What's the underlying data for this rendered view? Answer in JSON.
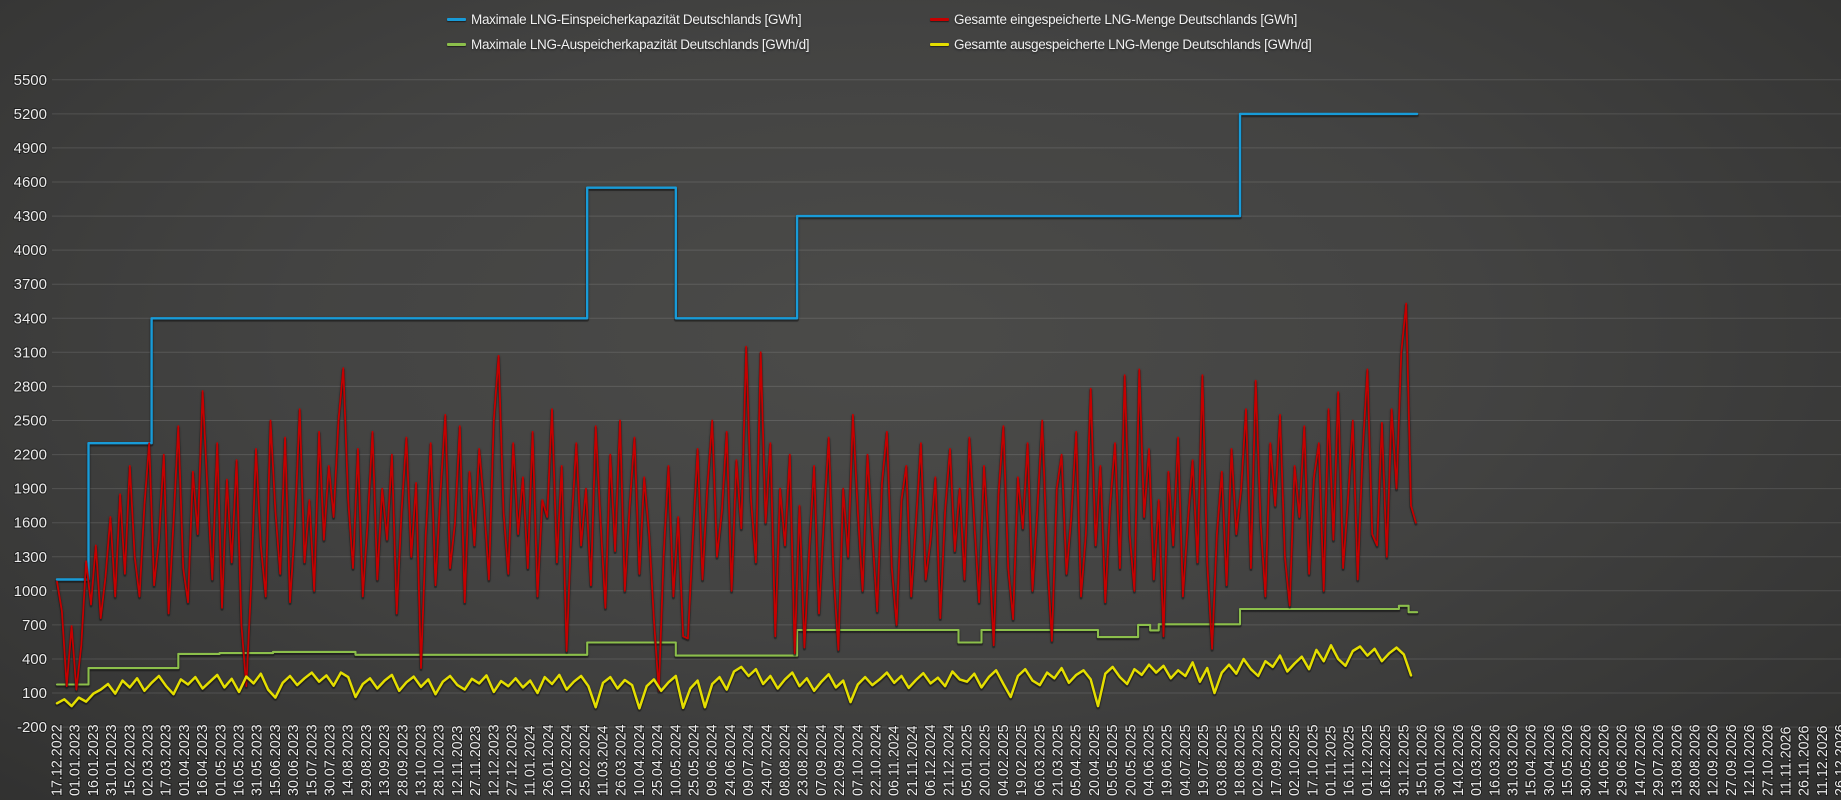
{
  "colors": {
    "background_center": "#4b4b49",
    "background_edge": "#2b2b2a",
    "gridline": "rgba(255,255,255,0.12)",
    "zero_axis_line": "rgba(255,255,255,0.24)",
    "axis_label": "#ebebeb",
    "legend_text": "#f1f1f1"
  },
  "chart_data": {
    "type": "line",
    "title": "",
    "xlabel": "",
    "ylabel": "",
    "grid": "horizontal-only",
    "legend_position": "top-center-two-columns",
    "y_axis": {
      "min": -200,
      "max": 5500,
      "step": 300,
      "ticks": [
        -200,
        100,
        400,
        700,
        1000,
        1300,
        1600,
        1900,
        2200,
        2500,
        2800,
        3100,
        3400,
        3700,
        4000,
        4300,
        4600,
        4900,
        5200,
        5500
      ]
    },
    "x_axis": {
      "start_date": "17.12.2022",
      "end_date": "26.12.2026",
      "tick_interval_days": 15,
      "data_end_day": 1121,
      "tick_labels": [
        "17.12.2022",
        "01.01.2023",
        "16.01.2023",
        "31.01.2023",
        "15.02.2023",
        "02.03.2023",
        "17.03.2023",
        "01.04.2023",
        "16.04.2023",
        "01.05.2023",
        "16.05.2023",
        "31.05.2023",
        "15.06.2023",
        "30.06.2023",
        "15.07.2023",
        "30.07.2023",
        "14.08.2023",
        "29.08.2023",
        "13.09.2023",
        "28.09.2023",
        "13.10.2023",
        "28.10.2023",
        "12.11.2023",
        "27.11.2023",
        "12.12.2023",
        "27.12.2023",
        "11.01.2024",
        "26.01.2024",
        "10.02.2024",
        "25.02.2024",
        "11.03.2024",
        "26.03.2024",
        "10.04.2024",
        "25.04.2024",
        "10.05.2024",
        "25.05.2024",
        "09.06.2024",
        "24.06.2024",
        "09.07.2024",
        "24.07.2024",
        "08.08.2024",
        "23.08.2024",
        "07.09.2024",
        "22.09.2024",
        "07.10.2024",
        "22.10.2024",
        "06.11.2024",
        "21.11.2024",
        "06.12.2024",
        "21.12.2024",
        "05.01.2025",
        "20.01.2025",
        "04.02.2025",
        "19.02.2025",
        "06.03.2025",
        "21.03.2025",
        "05.04.2025",
        "20.04.2025",
        "05.05.2025",
        "20.05.2025",
        "04.06.2025",
        "19.06.2025",
        "04.07.2025",
        "19.07.2025",
        "03.08.2025",
        "18.08.2025",
        "02.09.2025",
        "17.09.2025",
        "02.10.2025",
        "17.10.2025",
        "01.11.2025",
        "16.11.2025",
        "01.12.2025",
        "16.12.2025",
        "31.12.2025",
        "15.01.2026",
        "30.01.2026",
        "14.02.2026",
        "01.03.2026",
        "16.03.2026",
        "31.03.2026",
        "15.04.2026",
        "30.04.2026",
        "15.05.2026",
        "30.05.2026",
        "14.06.2026",
        "29.06.2026",
        "14.07.2026",
        "29.07.2026",
        "13.08.2026",
        "28.08.2026",
        "12.09.2026",
        "27.09.2026",
        "12.10.2026",
        "27.10.2026",
        "11.11.2026",
        "26.11.2026",
        "11.12.2026",
        "26.12.2026"
      ]
    },
    "series": [
      {
        "name": "Maximale LNG-Einspeicherkapazität Deutschlands [GWh]",
        "color": "#189bd8",
        "width": 2.4,
        "kind": "step",
        "points": [
          [
            0,
            1100
          ],
          [
            26,
            1100
          ],
          [
            26,
            2300
          ],
          [
            78,
            2300
          ],
          [
            78,
            3400
          ],
          [
            437,
            3400
          ],
          [
            437,
            4550
          ],
          [
            510,
            4550
          ],
          [
            510,
            3400
          ],
          [
            610,
            3400
          ],
          [
            610,
            4300
          ],
          [
            975,
            4300
          ],
          [
            975,
            5200
          ],
          [
            1121,
            5200
          ]
        ]
      },
      {
        "name": "Gesamte eingespeicherte LNG-Menge Deutschlands [GWh]",
        "color": "#c60000",
        "width": 1.8,
        "kind": "noisy",
        "step_days": 4,
        "values": [
          1080,
          820,
          160,
          690,
          130,
          520,
          1260,
          880,
          1400,
          760,
          1120,
          1650,
          950,
          1850,
          1150,
          2100,
          1300,
          950,
          1750,
          2300,
          1050,
          1450,
          2200,
          800,
          1600,
          2450,
          1200,
          900,
          2050,
          1500,
          2760,
          1900,
          1100,
          2300,
          850,
          1980,
          1250,
          2150,
          700,
          160,
          1050,
          2250,
          1400,
          950,
          2500,
          1700,
          1150,
          2350,
          900,
          1550,
          2600,
          1250,
          1800,
          1000,
          2400,
          1450,
          2100,
          1650,
          2500,
          2960,
          1800,
          1200,
          2250,
          950,
          1600,
          2400,
          1100,
          1900,
          1450,
          2200,
          800,
          1700,
          2350,
          1300,
          1950,
          320,
          1500,
          2300,
          1050,
          1850,
          2550,
          1200,
          1600,
          2450,
          900,
          2050,
          1400,
          2250,
          1750,
          1100,
          2500,
          3070,
          1700,
          1150,
          2300,
          1500,
          2000,
          1200,
          2400,
          950,
          1800,
          1650,
          2600,
          1250,
          2100,
          470,
          1550,
          2300,
          1400,
          1900,
          1050,
          2450,
          1600,
          850,
          2200,
          1350,
          2500,
          1000,
          1750,
          2350,
          1150,
          2000,
          1500,
          750,
          120,
          1300,
          2100,
          950,
          1650,
          600,
          580,
          1450,
          2250,
          1100,
          1900,
          2500,
          1300,
          1700,
          2400,
          1000,
          2150,
          1550,
          3150,
          1800,
          1250,
          3100,
          1600,
          2300,
          600,
          1900,
          1400,
          2200,
          450,
          1750,
          500,
          1350,
          2100,
          800,
          1600,
          2350,
          1150,
          480,
          1900,
          1300,
          2550,
          1700,
          1000,
          2200,
          1500,
          820,
          1950,
          2400,
          1200,
          700,
          1800,
          2100,
          950,
          1600,
          2300,
          1100,
          1450,
          2000,
          760,
          1700,
          2250,
          1350,
          1900,
          1100,
          2350,
          1600,
          900,
          2100,
          1400,
          520,
          1850,
          2450,
          1200,
          750,
          2000,
          1550,
          2300,
          1000,
          1700,
          2500,
          1300,
          560,
          1900,
          2200,
          1150,
          1650,
          2400,
          950,
          1500,
          2780,
          1400,
          2100,
          900,
          1750,
          2300,
          1200,
          2900,
          1500,
          1000,
          2950,
          1650,
          2250,
          1100,
          1800,
          600,
          2050,
          1400,
          2350,
          950,
          1600,
          2150,
          1250,
          2900,
          1250,
          490,
          1500,
          2050,
          1050,
          2250,
          1500,
          1900,
          2600,
          1200,
          2850,
          1600,
          950,
          2300,
          1750,
          2550,
          1300,
          870,
          2100,
          1650,
          2450,
          1150,
          2000,
          2300,
          1000,
          2600,
          1450,
          2750,
          1200,
          1800,
          2500,
          1100,
          2200,
          2950,
          1500,
          1400,
          2480,
          1300,
          2600,
          1900,
          3100,
          3530,
          1750,
          1600
        ]
      },
      {
        "name": "Maximale LNG-Auspeicherkapazität Deutschlands [GWh/d]",
        "color": "#8cbf4b",
        "width": 2.1,
        "kind": "step",
        "points": [
          [
            0,
            175
          ],
          [
            26,
            175
          ],
          [
            26,
            320
          ],
          [
            100,
            320
          ],
          [
            100,
            445
          ],
          [
            134,
            445
          ],
          [
            134,
            452
          ],
          [
            178,
            452
          ],
          [
            178,
            462
          ],
          [
            246,
            462
          ],
          [
            246,
            437
          ],
          [
            437,
            437
          ],
          [
            437,
            545
          ],
          [
            510,
            545
          ],
          [
            510,
            430
          ],
          [
            610,
            430
          ],
          [
            610,
            655
          ],
          [
            743,
            655
          ],
          [
            743,
            545
          ],
          [
            762,
            545
          ],
          [
            762,
            655
          ],
          [
            858,
            655
          ],
          [
            858,
            593
          ],
          [
            891,
            593
          ],
          [
            891,
            700
          ],
          [
            901,
            700
          ],
          [
            901,
            652
          ],
          [
            908,
            652
          ],
          [
            908,
            705
          ],
          [
            975,
            705
          ],
          [
            975,
            840
          ],
          [
            1106,
            840
          ],
          [
            1106,
            868
          ],
          [
            1114,
            868
          ],
          [
            1114,
            812
          ],
          [
            1121,
            812
          ]
        ]
      },
      {
        "name": "Gesamte ausgespeicherte LNG-Menge Deutschlands [GWh/d]",
        "color": "#e4de00",
        "width": 2.5,
        "kind": "noisy",
        "step_days": 6,
        "values": [
          10,
          45,
          -15,
          60,
          25,
          95,
          130,
          180,
          95,
          210,
          150,
          230,
          120,
          190,
          250,
          160,
          90,
          220,
          175,
          240,
          140,
          200,
          260,
          150,
          225,
          110,
          245,
          185,
          270,
          130,
          60,
          190,
          250,
          170,
          230,
          280,
          200,
          255,
          165,
          280,
          240,
          65,
          180,
          230,
          140,
          210,
          260,
          120,
          195,
          245,
          155,
          220,
          90,
          200,
          250,
          170,
          130,
          225,
          185,
          255,
          110,
          205,
          160,
          230,
          150,
          210,
          100,
          240,
          180,
          260,
          130,
          200,
          250,
          160,
          -25,
          190,
          240,
          140,
          215,
          170,
          -35,
          160,
          220,
          120,
          195,
          250,
          -30,
          140,
          210,
          -25,
          180,
          240,
          130,
          290,
          330,
          250,
          310,
          180,
          250,
          140,
          220,
          280,
          160,
          230,
          120,
          200,
          265,
          150,
          210,
          20,
          175,
          240,
          170,
          220,
          280,
          190,
          250,
          145,
          215,
          275,
          185,
          235,
          160,
          290,
          220,
          200,
          270,
          150,
          240,
          300,
          180,
          65,
          250,
          310,
          210,
          170,
          280,
          230,
          320,
          190,
          260,
          300,
          220,
          -15,
          270,
          330,
          240,
          180,
          310,
          260,
          350,
          280,
          340,
          230,
          300,
          250,
          370,
          200,
          320,
          100,
          280,
          350,
          270,
          400,
          310,
          250,
          380,
          330,
          430,
          290,
          360,
          420,
          310,
          480,
          380,
          520,
          400,
          340,
          470,
          510,
          430,
          490,
          380,
          450,
          500,
          440,
          255
        ]
      }
    ]
  },
  "legend": {
    "order_note": "row-major: blue, red / green, yellow"
  }
}
